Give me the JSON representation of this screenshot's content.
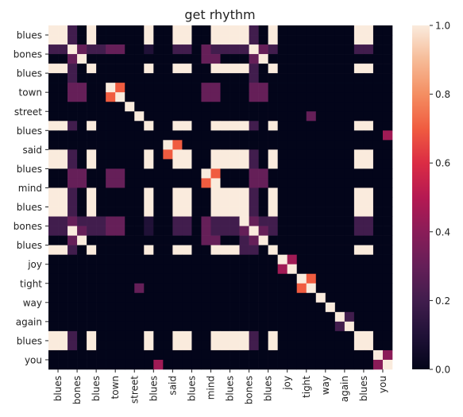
{
  "chart_data": {
    "type": "heatmap",
    "title": "get rhythm",
    "row_labels": [
      "blues",
      "bones",
      "blues",
      "town",
      "street",
      "blues",
      "said",
      "blues",
      "mind",
      "blues",
      "bones",
      "blues",
      "joy",
      "tight",
      "way",
      "again",
      "blues",
      "you"
    ],
    "col_labels": [
      "blues",
      "bones",
      "blues",
      "town",
      "street",
      "blues",
      "said",
      "blues",
      "mind",
      "blues",
      "bones",
      "blues",
      "joy",
      "tight",
      "way",
      "again",
      "blues",
      "you"
    ],
    "tokens": [
      "blues",
      "blues",
      "bones",
      "bones",
      "blues",
      "blues",
      "town",
      "town",
      "street",
      "street",
      "blues",
      "blues",
      "said",
      "said",
      "blues",
      "blues",
      "mind",
      "mind",
      "blues",
      "blues",
      "bones",
      "bones",
      "blues",
      "blues",
      "joy",
      "joy",
      "tight",
      "tight",
      "way",
      "way",
      "again",
      "again",
      "blues",
      "blues",
      "you",
      "you"
    ],
    "values": [
      [
        1,
        1,
        0.2,
        0,
        1,
        0,
        0,
        0,
        0,
        0,
        1,
        0,
        0,
        1,
        1,
        0,
        0,
        1,
        1,
        1,
        1,
        0.2,
        0,
        1,
        0,
        0,
        0,
        0,
        0,
        0,
        0,
        0,
        1,
        1,
        0,
        0
      ],
      [
        1,
        1,
        0.2,
        0,
        1,
        0,
        0,
        0,
        0,
        0,
        1,
        0,
        0,
        1,
        1,
        0,
        0,
        1,
        1,
        1,
        1,
        0.2,
        0,
        1,
        0,
        0,
        0,
        0,
        0,
        0,
        0,
        0,
        1,
        1,
        0,
        0
      ],
      [
        0.2,
        0.2,
        1,
        0.3,
        0.2,
        0.2,
        0.3,
        0.3,
        0,
        0,
        0.1,
        0,
        0,
        0.2,
        0.2,
        0,
        0.3,
        0.2,
        0.2,
        0.2,
        0.2,
        1,
        0.3,
        0.2,
        0,
        0,
        0,
        0,
        0,
        0,
        0,
        0,
        0.2,
        0.2,
        0,
        0
      ],
      [
        0,
        0,
        0.3,
        1,
        0,
        0,
        0,
        0,
        0,
        0,
        0,
        0,
        0,
        0,
        0,
        0,
        0.3,
        0.3,
        0,
        0,
        0,
        0.3,
        1,
        0,
        0,
        0,
        0,
        0,
        0,
        0,
        0,
        0,
        0,
        0,
        0,
        0
      ],
      [
        1,
        1,
        0.2,
        0,
        1,
        0,
        0,
        0,
        0,
        0,
        1,
        0,
        0,
        1,
        1,
        0,
        0,
        1,
        1,
        1,
        1,
        0.2,
        0,
        1,
        0,
        0,
        0,
        0,
        0,
        0,
        0,
        0,
        1,
        1,
        0,
        0
      ],
      [
        0,
        0,
        0.2,
        0,
        0,
        0,
        0,
        0,
        0,
        0,
        0,
        0,
        0,
        0,
        0,
        0,
        0,
        0,
        0,
        0,
        0,
        0.2,
        0,
        0,
        0,
        0,
        0,
        0,
        0,
        0,
        0,
        0,
        0,
        0,
        0,
        0
      ],
      [
        0,
        0,
        0.3,
        0.3,
        0,
        0,
        1,
        0.7,
        0,
        0,
        0,
        0,
        0,
        0,
        0,
        0,
        0.3,
        0.3,
        0,
        0,
        0,
        0.3,
        0.3,
        0,
        0,
        0,
        0,
        0,
        0,
        0,
        0,
        0,
        0,
        0,
        0,
        0
      ],
      [
        0,
        0,
        0.3,
        0.3,
        0,
        0,
        0.7,
        1,
        0,
        0,
        0,
        0,
        0,
        0,
        0,
        0,
        0.3,
        0.3,
        0,
        0,
        0,
        0.3,
        0.3,
        0,
        0,
        0,
        0,
        0,
        0,
        0,
        0,
        0,
        0,
        0,
        0,
        0
      ],
      [
        0,
        0,
        0,
        0,
        0,
        0,
        0,
        0,
        1,
        0,
        0,
        0,
        0,
        0,
        0,
        0,
        0,
        0,
        0,
        0,
        0,
        0,
        0,
        0,
        0,
        0,
        0,
        0,
        0,
        0,
        0,
        0,
        0,
        0,
        0,
        0
      ],
      [
        0,
        0,
        0,
        0,
        0,
        0,
        0,
        0,
        0,
        1,
        0,
        0,
        0,
        0,
        0,
        0,
        0,
        0,
        0,
        0,
        0,
        0,
        0,
        0,
        0,
        0,
        0,
        0.3,
        0,
        0,
        0,
        0,
        0,
        0,
        0,
        0
      ],
      [
        1,
        1,
        0.2,
        0,
        1,
        0,
        0,
        0,
        0,
        0,
        1,
        0,
        0,
        1,
        1,
        0,
        0,
        1,
        1,
        1,
        1,
        0.2,
        0,
        1,
        0,
        0,
        0,
        0,
        0,
        0,
        0,
        0,
        1,
        1,
        0,
        0
      ],
      [
        0,
        0,
        0,
        0,
        0,
        0,
        0,
        0,
        0,
        0,
        0,
        0,
        0,
        0,
        0,
        0,
        0,
        0,
        0,
        0,
        0,
        0,
        0,
        0,
        0,
        0,
        0,
        0,
        0,
        0,
        0,
        0,
        0,
        0,
        0,
        0.45
      ],
      [
        0,
        0,
        0,
        0,
        0,
        0,
        0,
        0,
        0,
        0,
        0,
        0,
        1,
        0.7,
        0,
        0,
        0,
        0,
        0,
        0,
        0,
        0,
        0,
        0,
        0,
        0,
        0,
        0,
        0,
        0,
        0,
        0,
        0,
        0,
        0,
        0
      ],
      [
        1,
        1,
        0.2,
        0,
        1,
        0,
        0,
        0,
        0,
        0,
        1,
        0,
        0.7,
        1,
        1,
        0,
        0,
        1,
        1,
        1,
        1,
        0.2,
        0,
        1,
        0,
        0,
        0,
        0,
        0,
        0,
        0,
        0,
        1,
        1,
        0,
        0
      ],
      [
        1,
        1,
        0.2,
        0,
        1,
        0,
        0,
        0,
        0,
        0,
        1,
        0,
        0,
        1,
        1,
        0,
        0,
        1,
        1,
        1,
        1,
        0.2,
        0,
        1,
        0,
        0,
        0,
        0,
        0,
        0,
        0,
        0,
        1,
        1,
        0,
        0
      ],
      [
        0,
        0,
        0.3,
        0.3,
        0,
        0,
        0.3,
        0.3,
        0,
        0,
        0,
        0,
        0,
        0,
        0,
        0,
        1,
        0.7,
        0,
        0,
        0,
        0.3,
        0.3,
        0,
        0,
        0,
        0,
        0,
        0,
        0,
        0,
        0,
        0,
        0,
        0,
        0
      ],
      [
        0,
        0,
        0.3,
        0.3,
        0,
        0,
        0.3,
        0.3,
        0,
        0,
        0,
        0,
        0,
        0,
        0,
        0,
        0.7,
        1,
        0,
        0,
        0,
        0.3,
        0.3,
        0,
        0,
        0,
        0,
        0,
        0,
        0,
        0,
        0,
        0,
        0,
        0,
        0
      ],
      [
        1,
        1,
        0.2,
        0,
        1,
        0,
        0,
        0,
        0,
        0,
        1,
        0,
        0,
        1,
        1,
        0,
        0,
        1,
        1,
        1,
        1,
        0.2,
        0,
        1,
        0,
        0,
        0,
        0,
        0,
        0,
        0,
        0,
        1,
        1,
        0,
        0
      ],
      [
        1,
        1,
        0.2,
        0,
        1,
        0,
        0,
        0,
        0,
        0,
        1,
        0,
        0,
        1,
        1,
        0,
        0,
        1,
        1,
        1,
        1,
        0.2,
        0,
        1,
        0,
        0,
        0,
        0,
        0,
        0,
        0,
        0,
        1,
        1,
        0,
        0
      ],
      [
        1,
        1,
        0.2,
        0,
        1,
        0,
        0,
        0,
        0,
        0,
        1,
        0,
        0,
        1,
        1,
        0,
        0,
        1,
        1,
        1,
        1,
        0.2,
        0,
        1,
        0,
        0,
        0,
        0,
        0,
        0,
        0,
        0,
        1,
        1,
        0,
        0
      ],
      [
        0.2,
        0.2,
        0.3,
        0.2,
        0.2,
        0.2,
        0.3,
        0.3,
        0,
        0,
        0.1,
        0,
        0,
        0.2,
        0.2,
        0,
        0.3,
        0.2,
        0.2,
        0.2,
        1,
        0.3,
        0.2,
        0.2,
        0,
        0,
        0,
        0,
        0,
        0,
        0,
        0,
        0.2,
        0.2,
        0,
        0
      ],
      [
        0.2,
        0.2,
        1,
        0.3,
        0.2,
        0.2,
        0.3,
        0.3,
        0,
        0,
        0.1,
        0,
        0,
        0.2,
        0.2,
        0,
        0.3,
        0.2,
        0.2,
        0.2,
        0.3,
        1,
        0.3,
        0.2,
        0,
        0,
        0,
        0,
        0,
        0,
        0,
        0,
        0.2,
        0.2,
        0,
        0
      ],
      [
        0,
        0,
        0.3,
        1,
        0,
        0,
        0,
        0,
        0,
        0,
        0,
        0,
        0,
        0,
        0,
        0,
        0.3,
        0.3,
        0,
        0,
        0.2,
        0.3,
        1,
        0,
        0,
        0,
        0,
        0,
        0,
        0,
        0,
        0,
        0,
        0,
        0,
        0
      ],
      [
        1,
        1,
        0.2,
        0,
        1,
        0,
        0,
        0,
        0,
        0,
        1,
        0,
        0,
        1,
        1,
        0,
        0,
        1,
        1,
        1,
        0.2,
        0.2,
        0,
        1,
        0,
        0,
        0,
        0,
        0,
        0,
        0,
        0,
        1,
        1,
        0,
        0
      ],
      [
        0,
        0,
        0,
        0,
        0,
        0,
        0,
        0,
        0,
        0,
        0,
        0,
        0,
        0,
        0,
        0,
        0,
        0,
        0,
        0,
        0,
        0,
        0,
        0,
        1,
        0.45,
        0,
        0,
        0,
        0,
        0,
        0,
        0,
        0,
        0,
        0
      ],
      [
        0,
        0,
        0,
        0,
        0,
        0,
        0,
        0,
        0,
        0,
        0,
        0,
        0,
        0,
        0,
        0,
        0,
        0,
        0,
        0,
        0,
        0,
        0,
        0,
        0.45,
        1,
        0,
        0,
        0,
        0,
        0,
        0,
        0,
        0,
        0,
        0
      ],
      [
        0,
        0,
        0,
        0,
        0,
        0,
        0,
        0,
        0,
        0,
        0,
        0,
        0,
        0,
        0,
        0,
        0,
        0,
        0,
        0,
        0,
        0,
        0,
        0,
        0,
        0,
        1,
        0.7,
        0,
        0,
        0,
        0,
        0,
        0,
        0,
        0
      ],
      [
        0,
        0,
        0,
        0,
        0,
        0,
        0,
        0,
        0,
        0.3,
        0,
        0,
        0,
        0,
        0,
        0,
        0,
        0,
        0,
        0,
        0,
        0,
        0,
        0,
        0,
        0,
        0.7,
        1,
        0,
        0,
        0,
        0,
        0,
        0,
        0,
        0
      ],
      [
        0,
        0,
        0,
        0,
        0,
        0,
        0,
        0,
        0,
        0,
        0,
        0,
        0,
        0,
        0,
        0,
        0,
        0,
        0,
        0,
        0,
        0,
        0,
        0,
        0,
        0,
        0,
        0,
        1,
        0,
        0,
        0,
        0,
        0,
        0,
        0
      ],
      [
        0,
        0,
        0,
        0,
        0,
        0,
        0,
        0,
        0,
        0,
        0,
        0,
        0,
        0,
        0,
        0,
        0,
        0,
        0,
        0,
        0,
        0,
        0,
        0,
        0,
        0,
        0,
        0,
        0,
        1,
        0,
        0,
        0,
        0,
        0,
        0
      ],
      [
        0,
        0,
        0,
        0,
        0,
        0,
        0,
        0,
        0,
        0,
        0,
        0,
        0,
        0,
        0,
        0,
        0,
        0,
        0,
        0,
        0,
        0,
        0,
        0,
        0,
        0,
        0,
        0,
        0,
        0,
        1,
        0.2,
        0,
        0,
        0,
        0
      ],
      [
        0,
        0,
        0,
        0,
        0,
        0,
        0,
        0,
        0,
        0,
        0,
        0,
        0,
        0,
        0,
        0,
        0,
        0,
        0,
        0,
        0,
        0,
        0,
        0,
        0,
        0,
        0,
        0,
        0,
        0,
        0.2,
        1,
        0,
        0,
        0,
        0
      ],
      [
        1,
        1,
        0.2,
        0,
        1,
        0,
        0,
        0,
        0,
        0,
        1,
        0,
        0,
        1,
        1,
        0,
        0,
        1,
        1,
        1,
        1,
        0.2,
        0,
        1,
        0,
        0,
        0,
        0,
        0,
        0,
        0,
        0,
        1,
        1,
        0,
        0
      ],
      [
        1,
        1,
        0.2,
        0,
        1,
        0,
        0,
        0,
        0,
        0,
        1,
        0,
        0,
        1,
        1,
        0,
        0,
        1,
        1,
        1,
        1,
        0.2,
        0,
        1,
        0,
        0,
        0,
        0,
        0,
        0,
        0,
        0,
        1,
        1,
        0,
        0
      ],
      [
        0,
        0,
        0,
        0,
        0,
        0,
        0,
        0,
        0,
        0,
        0,
        0,
        0,
        0,
        0,
        0,
        0,
        0,
        0,
        0,
        0,
        0,
        0,
        0,
        0,
        0,
        0,
        0,
        0,
        0,
        0,
        0,
        0,
        0,
        1,
        0.4
      ],
      [
        0,
        0,
        0,
        0,
        0,
        0,
        0,
        0,
        0,
        0,
        0,
        0.45,
        0,
        0,
        0,
        0,
        0,
        0,
        0,
        0,
        0,
        0,
        0,
        0,
        0,
        0,
        0,
        0,
        0,
        0,
        0,
        0,
        0,
        0,
        0.4,
        1
      ]
    ],
    "colorbar": {
      "min": 0.0,
      "max": 1.0,
      "ticks": [
        "0.0",
        "0.2",
        "0.4",
        "0.6",
        "0.8",
        "1.0"
      ],
      "colormap": "rocket"
    }
  }
}
